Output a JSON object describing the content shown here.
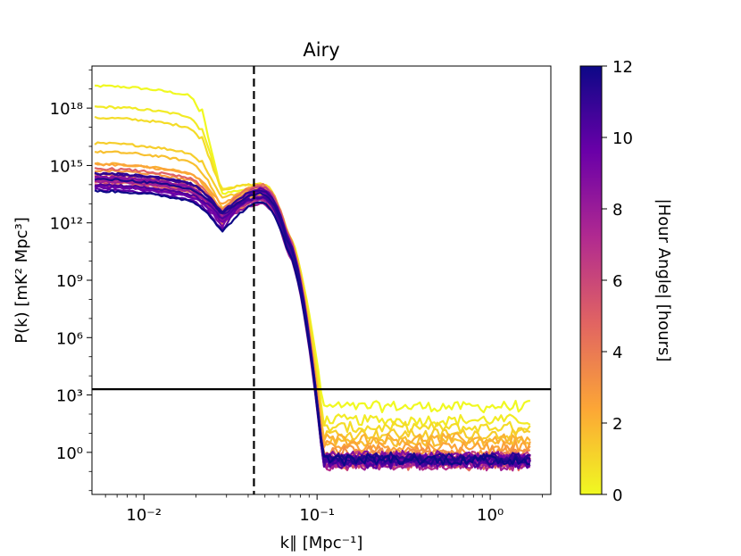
{
  "chart_data": {
    "type": "line",
    "title": "Airy",
    "xlabel": "k∥ [Mpc⁻¹]",
    "ylabel": "P(k) [mK² Mpc³]",
    "xscale": "log",
    "yscale": "log",
    "xlim_log10": [
      -2.3,
      0.35
    ],
    "ylim_log10": [
      -2.2,
      20.2
    ],
    "x_ticks": [
      {
        "log10": -2,
        "label": "10⁻²"
      },
      {
        "log10": -1,
        "label": "10⁻¹"
      },
      {
        "log10": 0,
        "label": "10⁰"
      }
    ],
    "y_ticks": [
      {
        "log10": 0,
        "label": "10⁰"
      },
      {
        "log10": 3,
        "label": "10³"
      },
      {
        "log10": 6,
        "label": "10⁶"
      },
      {
        "log10": 9,
        "label": "10⁹"
      },
      {
        "log10": 12,
        "label": "10¹²"
      },
      {
        "log10": 15,
        "label": "10¹⁵"
      },
      {
        "log10": 18,
        "label": "10¹⁸"
      }
    ],
    "vertical_line": {
      "k": 0.0432,
      "style": "dashed",
      "color": "#000000"
    },
    "horizontal_line": {
      "power_log10": 3.3,
      "style": "solid",
      "color": "#000000"
    },
    "k_range": [
      0.0052,
      1.7
    ],
    "n_series": 30,
    "series_note": "One curve per |Hour Angle| value from 0 to 12 hours",
    "colorbar": {
      "label": "|Hour Angle| [hours]",
      "min": 0,
      "max": 12,
      "ticks": [
        "0",
        "2",
        "4",
        "6",
        "8",
        "10",
        "12"
      ],
      "colormap": "plasma",
      "stops": [
        "#f0f921",
        "#fca636",
        "#e16462",
        "#b12a90",
        "#6a00a8",
        "#0d0887"
      ]
    }
  }
}
